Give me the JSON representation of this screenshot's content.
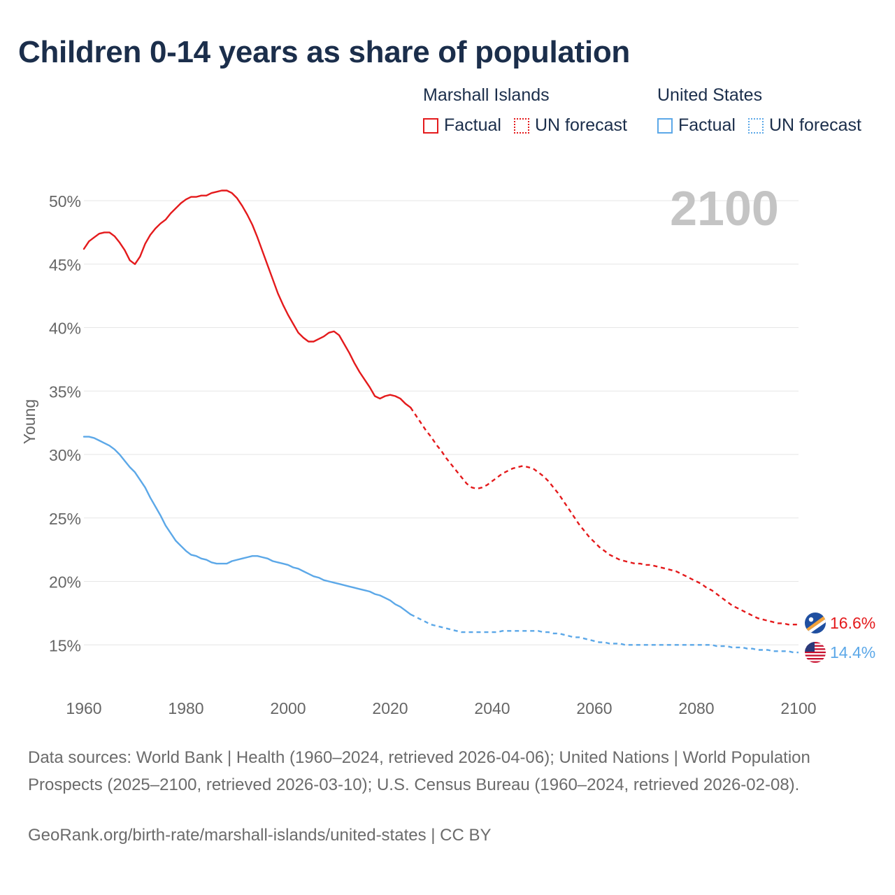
{
  "title": "Children 0-14 years as share of population",
  "legend": {
    "groups": [
      {
        "country": "Marshall Islands",
        "factual_label": "Factual",
        "forecast_label": "UN forecast",
        "color": "#e41a1c"
      },
      {
        "country": "United States",
        "factual_label": "Factual",
        "forecast_label": "UN forecast",
        "color": "#5ca8e8"
      }
    ]
  },
  "big_year": "2100",
  "footer": {
    "sources": "Data sources: World Bank | Health (1960–2024, retrieved 2026-04-06); United Nations | World Population Prospects (2025–2100, retrieved 2026-03-10); U.S. Census Bureau (1960–2024, retrieved 2026-02-08).",
    "credit": "GeoRank.org/birth-rate/marshall-islands/united-states | CC BY"
  },
  "chart_data": {
    "type": "line",
    "title": "Children 0-14 years as share of population",
    "xlabel": "",
    "ylabel": "Young",
    "xlim": [
      1960,
      2100
    ],
    "ylim": [
      12,
      53
    ],
    "x_ticks": [
      1960,
      1980,
      2000,
      2020,
      2040,
      2060,
      2080,
      2100
    ],
    "y_ticks": [
      15,
      20,
      25,
      30,
      35,
      40,
      45,
      50
    ],
    "y_tick_labels": [
      "15%",
      "20%",
      "25%",
      "30%",
      "35%",
      "40%",
      "45%",
      "50%"
    ],
    "grid": true,
    "factual_end_year": 2024,
    "series": [
      {
        "name": "Marshall Islands",
        "color": "#e41a1c",
        "end_label": "16.6%",
        "icon": "marshall-islands-flag-icon",
        "points": [
          [
            1960,
            46.2
          ],
          [
            1961,
            46.8
          ],
          [
            1962,
            47.1
          ],
          [
            1963,
            47.4
          ],
          [
            1964,
            47.5
          ],
          [
            1965,
            47.5
          ],
          [
            1966,
            47.2
          ],
          [
            1967,
            46.7
          ],
          [
            1968,
            46.1
          ],
          [
            1969,
            45.3
          ],
          [
            1970,
            45.0
          ],
          [
            1971,
            45.6
          ],
          [
            1972,
            46.6
          ],
          [
            1973,
            47.3
          ],
          [
            1974,
            47.8
          ],
          [
            1975,
            48.2
          ],
          [
            1976,
            48.5
          ],
          [
            1977,
            49.0
          ],
          [
            1978,
            49.4
          ],
          [
            1979,
            49.8
          ],
          [
            1980,
            50.1
          ],
          [
            1981,
            50.3
          ],
          [
            1982,
            50.3
          ],
          [
            1983,
            50.4
          ],
          [
            1984,
            50.4
          ],
          [
            1985,
            50.6
          ],
          [
            1986,
            50.7
          ],
          [
            1987,
            50.8
          ],
          [
            1988,
            50.8
          ],
          [
            1989,
            50.6
          ],
          [
            1990,
            50.2
          ],
          [
            1991,
            49.6
          ],
          [
            1992,
            48.9
          ],
          [
            1993,
            48.1
          ],
          [
            1994,
            47.1
          ],
          [
            1995,
            46.0
          ],
          [
            1996,
            44.9
          ],
          [
            1997,
            43.8
          ],
          [
            1998,
            42.7
          ],
          [
            1999,
            41.8
          ],
          [
            2000,
            41.0
          ],
          [
            2001,
            40.3
          ],
          [
            2002,
            39.6
          ],
          [
            2003,
            39.2
          ],
          [
            2004,
            38.9
          ],
          [
            2005,
            38.9
          ],
          [
            2006,
            39.1
          ],
          [
            2007,
            39.3
          ],
          [
            2008,
            39.6
          ],
          [
            2009,
            39.7
          ],
          [
            2010,
            39.4
          ],
          [
            2011,
            38.7
          ],
          [
            2012,
            38.0
          ],
          [
            2013,
            37.2
          ],
          [
            2014,
            36.5
          ],
          [
            2015,
            35.9
          ],
          [
            2016,
            35.3
          ],
          [
            2017,
            34.6
          ],
          [
            2018,
            34.4
          ],
          [
            2019,
            34.6
          ],
          [
            2020,
            34.7
          ],
          [
            2021,
            34.6
          ],
          [
            2022,
            34.4
          ],
          [
            2023,
            34.0
          ],
          [
            2024,
            33.7
          ],
          [
            2025,
            33.1
          ],
          [
            2026,
            32.5
          ],
          [
            2027,
            31.9
          ],
          [
            2028,
            31.4
          ],
          [
            2029,
            30.8
          ],
          [
            2030,
            30.3
          ],
          [
            2031,
            29.7
          ],
          [
            2032,
            29.2
          ],
          [
            2033,
            28.7
          ],
          [
            2034,
            28.2
          ],
          [
            2035,
            27.7
          ],
          [
            2036,
            27.4
          ],
          [
            2037,
            27.3
          ],
          [
            2038,
            27.4
          ],
          [
            2039,
            27.6
          ],
          [
            2040,
            27.9
          ],
          [
            2041,
            28.2
          ],
          [
            2042,
            28.5
          ],
          [
            2043,
            28.7
          ],
          [
            2044,
            28.9
          ],
          [
            2045,
            29.0
          ],
          [
            2046,
            29.1
          ],
          [
            2047,
            29.0
          ],
          [
            2048,
            28.9
          ],
          [
            2049,
            28.6
          ],
          [
            2050,
            28.3
          ],
          [
            2051,
            27.9
          ],
          [
            2052,
            27.4
          ],
          [
            2053,
            26.9
          ],
          [
            2054,
            26.3
          ],
          [
            2055,
            25.7
          ],
          [
            2056,
            25.1
          ],
          [
            2057,
            24.5
          ],
          [
            2058,
            24.0
          ],
          [
            2059,
            23.5
          ],
          [
            2060,
            23.1
          ],
          [
            2061,
            22.7
          ],
          [
            2062,
            22.4
          ],
          [
            2063,
            22.1
          ],
          [
            2064,
            21.9
          ],
          [
            2065,
            21.7
          ],
          [
            2066,
            21.6
          ],
          [
            2067,
            21.5
          ],
          [
            2068,
            21.4
          ],
          [
            2069,
            21.4
          ],
          [
            2070,
            21.3
          ],
          [
            2071,
            21.3
          ],
          [
            2072,
            21.2
          ],
          [
            2073,
            21.1
          ],
          [
            2074,
            21.0
          ],
          [
            2075,
            20.9
          ],
          [
            2076,
            20.8
          ],
          [
            2077,
            20.6
          ],
          [
            2078,
            20.4
          ],
          [
            2079,
            20.2
          ],
          [
            2080,
            20.0
          ],
          [
            2081,
            19.8
          ],
          [
            2082,
            19.5
          ],
          [
            2083,
            19.3
          ],
          [
            2084,
            19.0
          ],
          [
            2085,
            18.7
          ],
          [
            2086,
            18.4
          ],
          [
            2087,
            18.1
          ],
          [
            2088,
            17.9
          ],
          [
            2089,
            17.7
          ],
          [
            2090,
            17.5
          ],
          [
            2091,
            17.3
          ],
          [
            2092,
            17.1
          ],
          [
            2093,
            17.0
          ],
          [
            2094,
            16.9
          ],
          [
            2095,
            16.8
          ],
          [
            2096,
            16.7
          ],
          [
            2097,
            16.7
          ],
          [
            2098,
            16.6
          ],
          [
            2099,
            16.6
          ],
          [
            2100,
            16.6
          ]
        ]
      },
      {
        "name": "United States",
        "color": "#5ca8e8",
        "end_label": "14.4%",
        "icon": "united-states-flag-icon",
        "points": [
          [
            1960,
            31.4
          ],
          [
            1961,
            31.4
          ],
          [
            1962,
            31.3
          ],
          [
            1963,
            31.1
          ],
          [
            1964,
            30.9
          ],
          [
            1965,
            30.7
          ],
          [
            1966,
            30.4
          ],
          [
            1967,
            30.0
          ],
          [
            1968,
            29.5
          ],
          [
            1969,
            29.0
          ],
          [
            1970,
            28.6
          ],
          [
            1971,
            28.0
          ],
          [
            1972,
            27.4
          ],
          [
            1973,
            26.6
          ],
          [
            1974,
            25.9
          ],
          [
            1975,
            25.2
          ],
          [
            1976,
            24.4
          ],
          [
            1977,
            23.8
          ],
          [
            1978,
            23.2
          ],
          [
            1979,
            22.8
          ],
          [
            1980,
            22.4
          ],
          [
            1981,
            22.1
          ],
          [
            1982,
            22.0
          ],
          [
            1983,
            21.8
          ],
          [
            1984,
            21.7
          ],
          [
            1985,
            21.5
          ],
          [
            1986,
            21.4
          ],
          [
            1987,
            21.4
          ],
          [
            1988,
            21.4
          ],
          [
            1989,
            21.6
          ],
          [
            1990,
            21.7
          ],
          [
            1991,
            21.8
          ],
          [
            1992,
            21.9
          ],
          [
            1993,
            22.0
          ],
          [
            1994,
            22.0
          ],
          [
            1995,
            21.9
          ],
          [
            1996,
            21.8
          ],
          [
            1997,
            21.6
          ],
          [
            1998,
            21.5
          ],
          [
            1999,
            21.4
          ],
          [
            2000,
            21.3
          ],
          [
            2001,
            21.1
          ],
          [
            2002,
            21.0
          ],
          [
            2003,
            20.8
          ],
          [
            2004,
            20.6
          ],
          [
            2005,
            20.4
          ],
          [
            2006,
            20.3
          ],
          [
            2007,
            20.1
          ],
          [
            2008,
            20.0
          ],
          [
            2009,
            19.9
          ],
          [
            2010,
            19.8
          ],
          [
            2011,
            19.7
          ],
          [
            2012,
            19.6
          ],
          [
            2013,
            19.5
          ],
          [
            2014,
            19.4
          ],
          [
            2015,
            19.3
          ],
          [
            2016,
            19.2
          ],
          [
            2017,
            19.0
          ],
          [
            2018,
            18.9
          ],
          [
            2019,
            18.7
          ],
          [
            2020,
            18.5
          ],
          [
            2021,
            18.2
          ],
          [
            2022,
            18.0
          ],
          [
            2023,
            17.7
          ],
          [
            2024,
            17.4
          ],
          [
            2025,
            17.2
          ],
          [
            2026,
            17.0
          ],
          [
            2027,
            16.8
          ],
          [
            2028,
            16.6
          ],
          [
            2029,
            16.5
          ],
          [
            2030,
            16.4
          ],
          [
            2031,
            16.3
          ],
          [
            2032,
            16.2
          ],
          [
            2033,
            16.1
          ],
          [
            2034,
            16.0
          ],
          [
            2035,
            16.0
          ],
          [
            2036,
            16.0
          ],
          [
            2037,
            16.0
          ],
          [
            2038,
            16.0
          ],
          [
            2039,
            16.0
          ],
          [
            2040,
            16.0
          ],
          [
            2041,
            16.0
          ],
          [
            2042,
            16.1
          ],
          [
            2043,
            16.1
          ],
          [
            2044,
            16.1
          ],
          [
            2045,
            16.1
          ],
          [
            2046,
            16.1
          ],
          [
            2047,
            16.1
          ],
          [
            2048,
            16.1
          ],
          [
            2049,
            16.1
          ],
          [
            2050,
            16.0
          ],
          [
            2051,
            16.0
          ],
          [
            2052,
            15.9
          ],
          [
            2053,
            15.9
          ],
          [
            2054,
            15.8
          ],
          [
            2055,
            15.7
          ],
          [
            2056,
            15.6
          ],
          [
            2057,
            15.6
          ],
          [
            2058,
            15.5
          ],
          [
            2059,
            15.4
          ],
          [
            2060,
            15.3
          ],
          [
            2061,
            15.2
          ],
          [
            2062,
            15.2
          ],
          [
            2063,
            15.1
          ],
          [
            2064,
            15.1
          ],
          [
            2065,
            15.1
          ],
          [
            2066,
            15.0
          ],
          [
            2067,
            15.0
          ],
          [
            2068,
            15.0
          ],
          [
            2069,
            15.0
          ],
          [
            2070,
            15.0
          ],
          [
            2071,
            15.0
          ],
          [
            2072,
            15.0
          ],
          [
            2073,
            15.0
          ],
          [
            2074,
            15.0
          ],
          [
            2075,
            15.0
          ],
          [
            2076,
            15.0
          ],
          [
            2077,
            15.0
          ],
          [
            2078,
            15.0
          ],
          [
            2079,
            15.0
          ],
          [
            2080,
            15.0
          ],
          [
            2081,
            15.0
          ],
          [
            2082,
            15.0
          ],
          [
            2083,
            15.0
          ],
          [
            2084,
            14.9
          ],
          [
            2085,
            14.9
          ],
          [
            2086,
            14.9
          ],
          [
            2087,
            14.8
          ],
          [
            2088,
            14.8
          ],
          [
            2089,
            14.8
          ],
          [
            2090,
            14.7
          ],
          [
            2091,
            14.7
          ],
          [
            2092,
            14.6
          ],
          [
            2093,
            14.6
          ],
          [
            2094,
            14.6
          ],
          [
            2095,
            14.5
          ],
          [
            2096,
            14.5
          ],
          [
            2097,
            14.5
          ],
          [
            2098,
            14.5
          ],
          [
            2099,
            14.4
          ],
          [
            2100,
            14.4
          ]
        ]
      }
    ]
  }
}
